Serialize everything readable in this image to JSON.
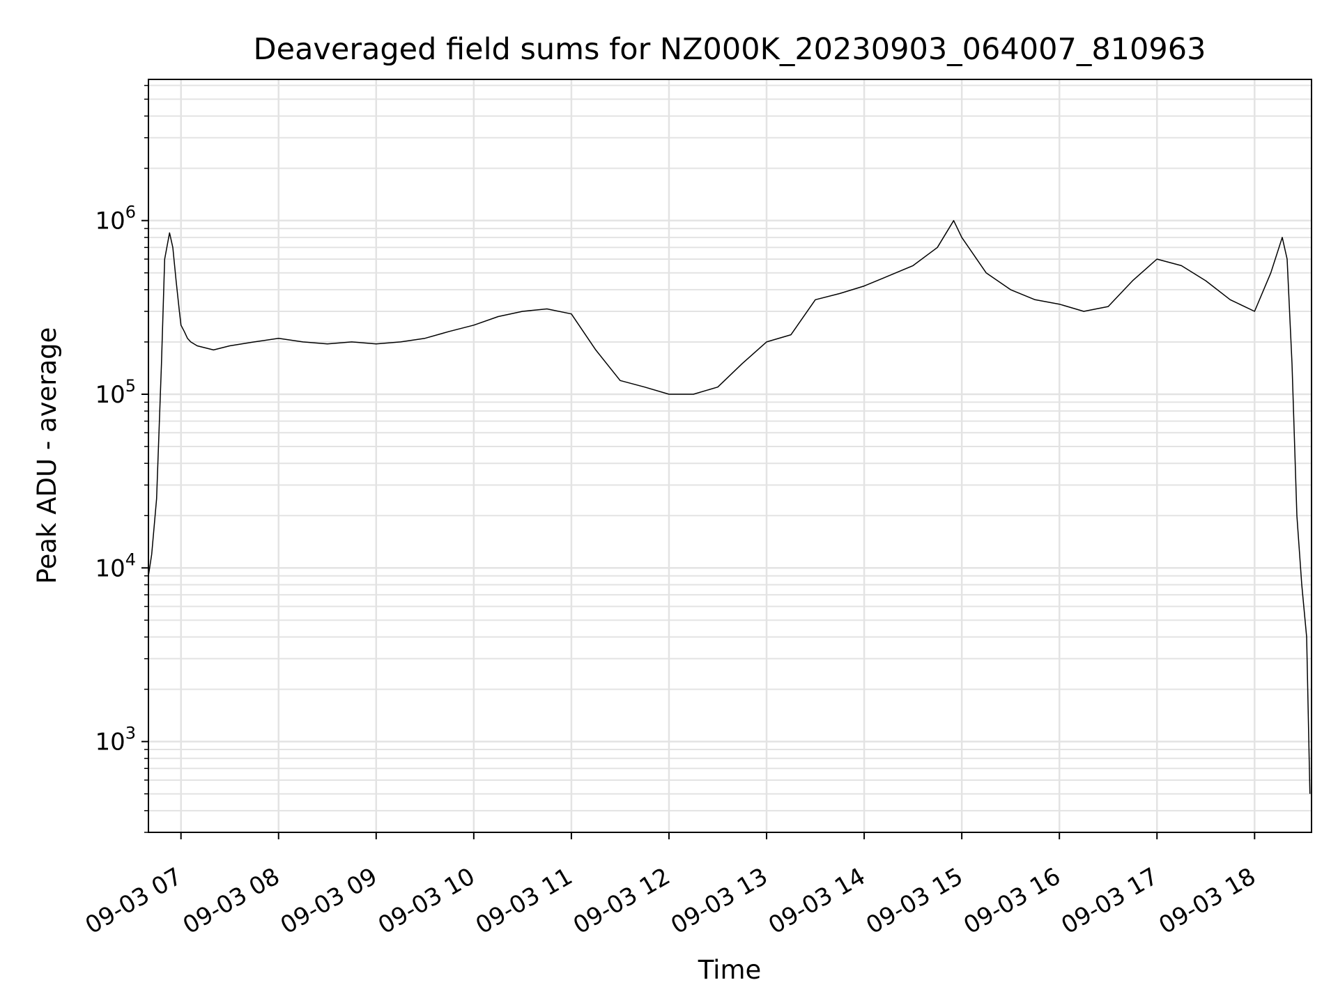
{
  "chart_data": {
    "type": "line",
    "title": "Deaveraged field sums for NZ000K_20230903_064007_810963",
    "xlabel": "Time",
    "ylabel": "Peak ADU - average",
    "x_ticks": [
      "09-03 07",
      "09-03 08",
      "09-03 09",
      "09-03 10",
      "09-03 11",
      "09-03 12",
      "09-03 13",
      "09-03 14",
      "09-03 15",
      "09-03 16",
      "09-03 17",
      "09-03 18"
    ],
    "y_scale": "log",
    "y_ticks": [
      {
        "base": "10",
        "exp": "3",
        "value": 1000
      },
      {
        "base": "10",
        "exp": "4",
        "value": 10000
      },
      {
        "base": "10",
        "exp": "5",
        "value": 100000
      },
      {
        "base": "10",
        "exp": "6",
        "value": 1000000
      }
    ],
    "xlim": [
      "2023-09-03 06:40",
      "2023-09-03 18:35"
    ],
    "ylim": [
      300,
      6500000
    ],
    "grid": true,
    "line_color": "#000000",
    "grid_color": "#e3e3e3",
    "series": [
      {
        "x": [
          "06:40",
          "06:42",
          "06:45",
          "06:48",
          "06:50",
          "06:53",
          "06:55",
          "06:57",
          "06:59",
          "07:00",
          "07:02",
          "07:04",
          "07:06",
          "07:10",
          "07:20",
          "07:30",
          "07:45",
          "08:00",
          "08:15",
          "08:30",
          "08:45",
          "09:00",
          "09:15",
          "09:30",
          "09:45",
          "10:00",
          "10:15",
          "10:30",
          "10:45",
          "11:00",
          "11:15",
          "11:30",
          "11:45",
          "12:00",
          "12:15",
          "12:30",
          "12:45",
          "13:00",
          "13:15",
          "13:30",
          "13:45",
          "14:00",
          "14:15",
          "14:30",
          "14:45",
          "14:55",
          "15:00",
          "15:15",
          "15:30",
          "15:45",
          "16:00",
          "16:15",
          "16:30",
          "16:45",
          "17:00",
          "17:15",
          "17:30",
          "17:45",
          "18:00",
          "18:10",
          "18:17",
          "18:20",
          "18:23",
          "18:26",
          "18:29",
          "18:32",
          "18:34"
        ],
        "y": [
          9000,
          12000,
          25000,
          150000,
          600000,
          850000,
          700000,
          450000,
          300000,
          250000,
          230000,
          210000,
          200000,
          190000,
          180000,
          190000,
          200000,
          210000,
          200000,
          195000,
          200000,
          195000,
          200000,
          210000,
          230000,
          250000,
          280000,
          300000,
          310000,
          290000,
          180000,
          120000,
          110000,
          100000,
          100000,
          110000,
          150000,
          200000,
          220000,
          350000,
          380000,
          420000,
          480000,
          550000,
          700000,
          1000000,
          800000,
          500000,
          400000,
          350000,
          330000,
          300000,
          320000,
          450000,
          600000,
          550000,
          450000,
          350000,
          300000,
          500000,
          800000,
          600000,
          150000,
          20000,
          8000,
          4000,
          500
        ]
      }
    ]
  }
}
